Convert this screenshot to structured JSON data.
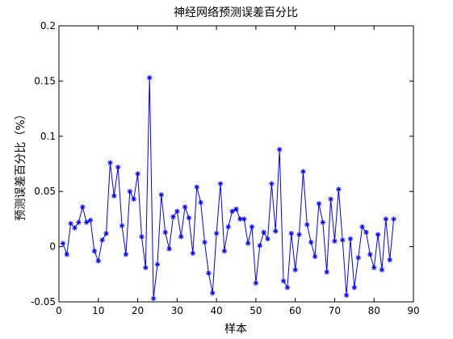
{
  "chart_data": {
    "type": "line",
    "title": "神经网络预测误差百分比",
    "xlabel": "样本",
    "ylabel": "预测误差百分比（%）",
    "xlim": [
      0,
      90
    ],
    "ylim": [
      -0.05,
      0.2
    ],
    "xticks": [
      0,
      10,
      20,
      30,
      40,
      50,
      60,
      70,
      80,
      90
    ],
    "yticks": [
      -0.05,
      0,
      0.05,
      0.1,
      0.15,
      0.2
    ],
    "xtick_labels": [
      "0",
      "10",
      "20",
      "30",
      "40",
      "50",
      "60",
      "70",
      "80",
      "90"
    ],
    "ytick_labels": [
      "-0.05",
      "0",
      "0.05",
      "0.1",
      "0.15",
      "0.2"
    ],
    "grid": false,
    "series": [
      {
        "color": "#0000ff",
        "marker": "asterisk",
        "x": [
          1,
          2,
          3,
          4,
          5,
          6,
          7,
          8,
          9,
          10,
          11,
          12,
          13,
          14,
          15,
          16,
          17,
          18,
          19,
          20,
          21,
          22,
          23,
          24,
          25,
          26,
          27,
          28,
          29,
          30,
          31,
          32,
          33,
          34,
          35,
          36,
          37,
          38,
          39,
          40,
          41,
          42,
          43,
          44,
          45,
          46,
          47,
          48,
          49,
          50,
          51,
          52,
          53,
          54,
          55,
          56,
          57,
          58,
          59,
          60,
          61,
          62,
          63,
          64,
          65,
          66,
          67,
          68,
          69,
          70,
          71,
          72,
          73,
          74,
          75,
          76,
          77,
          78,
          79,
          80,
          81,
          82,
          83,
          84,
          85
        ],
        "y": [
          0.003,
          -0.007,
          0.021,
          0.017,
          0.022,
          0.036,
          0.022,
          0.024,
          -0.004,
          -0.013,
          0.006,
          0.012,
          0.076,
          0.046,
          0.072,
          0.019,
          -0.007,
          0.05,
          0.043,
          0.066,
          0.009,
          -0.019,
          0.153,
          -0.047,
          -0.016,
          0.047,
          0.013,
          -0.002,
          0.027,
          0.032,
          0.009,
          0.036,
          0.026,
          -0.006,
          0.054,
          0.04,
          0.004,
          -0.024,
          -0.042,
          0.012,
          0.057,
          -0.004,
          0.018,
          0.032,
          0.034,
          0.025,
          0.025,
          0.003,
          0.018,
          -0.033,
          0.001,
          0.013,
          0.007,
          0.057,
          0.014,
          0.088,
          -0.031,
          -0.037,
          0.012,
          -0.021,
          0.011,
          0.068,
          0.02,
          0.004,
          -0.009,
          0.039,
          0.022,
          -0.023,
          0.043,
          0.005,
          0.052,
          0.006,
          -0.044,
          0.007,
          -0.037,
          -0.01,
          0.018,
          0.013,
          -0.007,
          -0.019,
          0.011,
          -0.021,
          0.025,
          -0.012,
          0.025
        ]
      }
    ]
  }
}
